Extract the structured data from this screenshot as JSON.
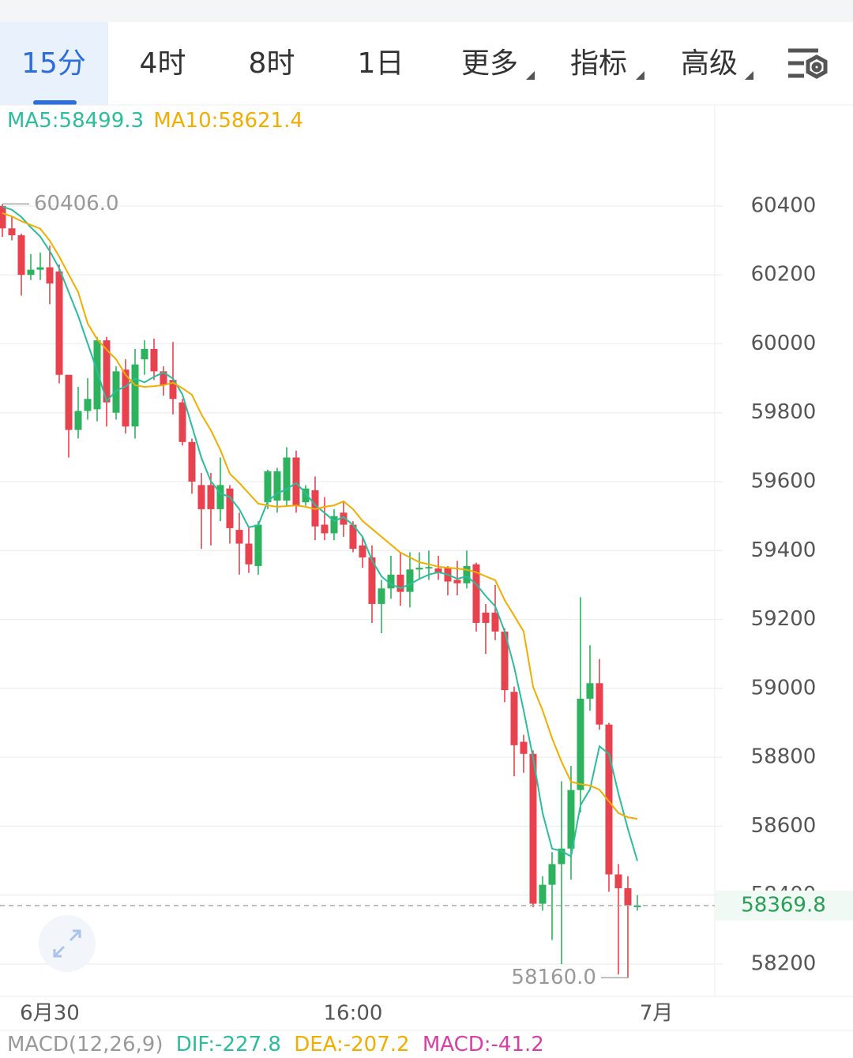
{
  "tabs": [
    "15分",
    "4时",
    "8时",
    "1日",
    "更多",
    "指标",
    "高级"
  ],
  "chart_data": {
    "type": "candlestick",
    "open": [
      60400,
      60335,
      60315,
      60200,
      60215,
      60222,
      60210,
      59910,
      59750,
      59805,
      59810,
      60010,
      59800,
      59925,
      59760,
      59955,
      59985,
      59920,
      59895,
      59830,
      59715,
      59590,
      59590,
      59520,
      59580,
      59460,
      59420,
      59355,
      59540,
      59545,
      59545,
      59670,
      59540,
      59575,
      59475,
      59450,
      59510,
      59475,
      59415,
      59380,
      59245,
      59290,
      59330,
      59280,
      59345,
      59348,
      59348,
      59350,
      59315,
      59305,
      59360,
      59220,
      59220,
      59165,
      58990,
      58845,
      58810,
      58375,
      58430,
      58490,
      58535,
      58705,
      58970,
      59015,
      58895,
      58460,
      58420,
      58365
    ],
    "high": [
      60406,
      60370,
      60320,
      60260,
      60265,
      60285,
      60230,
      59910,
      59875,
      59900,
      60020,
      60020,
      59935,
      59955,
      59985,
      60010,
      60015,
      59935,
      60005,
      59840,
      59725,
      59625,
      59625,
      59670,
      59590,
      59510,
      59465,
      59485,
      59635,
      59640,
      59700,
      59690,
      59590,
      59615,
      59555,
      59520,
      59545,
      59485,
      59440,
      59415,
      59315,
      59385,
      59395,
      59395,
      59395,
      59400,
      59385,
      59355,
      59370,
      59400,
      59365,
      59245,
      59300,
      59175,
      59005,
      58865,
      58820,
      58455,
      58525,
      58730,
      58775,
      59265,
      59125,
      59085,
      58900,
      58490,
      58455,
      58400
    ],
    "low": [
      60310,
      60300,
      60140,
      60185,
      60185,
      60115,
      59885,
      59670,
      59725,
      59780,
      59775,
      59760,
      59780,
      59740,
      59725,
      59910,
      59895,
      59850,
      59795,
      59705,
      59565,
      59405,
      59415,
      59485,
      59420,
      59330,
      59335,
      59330,
      59520,
      59510,
      59530,
      59510,
      59530,
      59430,
      59430,
      59430,
      59440,
      59395,
      59350,
      59190,
      59160,
      59260,
      59240,
      59235,
      59315,
      59315,
      59315,
      59270,
      59270,
      59290,
      59165,
      59100,
      59140,
      58960,
      58745,
      58755,
      58365,
      58355,
      58270,
      58200,
      58445,
      58640,
      58935,
      58880,
      58410,
      58170,
      58160,
      58355
    ],
    "close": [
      60335,
      60315,
      60200,
      60215,
      60222,
      60175,
      59910,
      59750,
      59805,
      59840,
      60010,
      59830,
      59920,
      59760,
      59940,
      59985,
      59920,
      59880,
      59840,
      59715,
      59600,
      59520,
      59520,
      59590,
      59465,
      59420,
      59360,
      59475,
      59630,
      59630,
      59670,
      59530,
      59580,
      59470,
      59450,
      59500,
      59475,
      59405,
      59380,
      59245,
      59290,
      59330,
      59280,
      59345,
      59350,
      59352,
      59335,
      59310,
      59305,
      59355,
      59190,
      59190,
      59165,
      58995,
      58835,
      58810,
      58375,
      58430,
      58490,
      58535,
      58705,
      58970,
      59015,
      58895,
      58460,
      58420,
      58370,
      58370
    ],
    "up_color": "#2db35d",
    "down_color": "#e8424f",
    "series": [
      {
        "label": "MA5:58499.3",
        "color": "#2bbd9c",
        "values": [
          60398,
          60389,
          60368,
          60338,
          60311,
          60269,
          60219,
          60150,
          60081,
          60001,
          59921,
          59834,
          59864,
          59876,
          59899,
          59888,
          59904,
          59917,
          59899,
          59853,
          59761,
          59669,
          59601,
          59566,
          59555,
          59520,
          59467,
          59474,
          59543,
          59566,
          59578,
          59596,
          59566,
          59532,
          59509,
          59486,
          59497,
          59474,
          59440,
          59371,
          59325,
          59302,
          59291,
          59302,
          59318,
          59330,
          59337,
          59330,
          59318,
          59325,
          59302,
          59268,
          59238,
          59165,
          59062,
          58936,
          58798,
          58638,
          58535,
          58528,
          58512,
          58661,
          58707,
          58832,
          58810,
          58695,
          58592,
          58499.3
        ]
      },
      {
        "label": "MA10:58621.4",
        "color": "#f2ae00",
        "values": [
          60379,
          60370,
          60356,
          60345,
          60334,
          60299,
          60253,
          60201,
          60150,
          60059,
          60013,
          59983,
          59955,
          59910,
          59880,
          59875,
          59877,
          59880,
          59887,
          59871,
          59852,
          59795,
          59749,
          59692,
          59623,
          59596,
          59566,
          59536,
          59531,
          59527,
          59529,
          59531,
          59527,
          59520,
          59527,
          59531,
          59543,
          59520,
          59486,
          59463,
          59440,
          59417,
          59394,
          59380,
          59366,
          59360,
          59353,
          59350,
          59348,
          59344,
          59337,
          59325,
          59314,
          59256,
          59211,
          59165,
          59004,
          58936,
          58855,
          58787,
          58729,
          58722,
          58718,
          58706,
          58672,
          58638,
          58626,
          58621.4
        ]
      }
    ],
    "ylim": [
      58106,
      60693
    ],
    "yticks": [
      58200,
      58400,
      58600,
      58800,
      59000,
      59200,
      59400,
      59600,
      59800,
      60000,
      60200,
      60400
    ],
    "xlim": [
      -0.25,
      75.17
    ],
    "xticks": [
      {
        "value": 5,
        "label": "6月30"
      },
      {
        "value": 37,
        "label": "16:00"
      },
      {
        "value": 69,
        "label": "7月"
      }
    ],
    "grid": true,
    "high_label": {
      "value": 60406,
      "label": "60406.0"
    },
    "low_label": {
      "value": 58160,
      "label": "58160.0"
    },
    "last_price": {
      "value": 58369.8,
      "label": "58369.8"
    }
  },
  "macd": {
    "title": "MACD(12,26,9)",
    "dif": "DIF:-227.8",
    "dea": "DEA:-207.2",
    "macd": "MACD:-41.2"
  }
}
